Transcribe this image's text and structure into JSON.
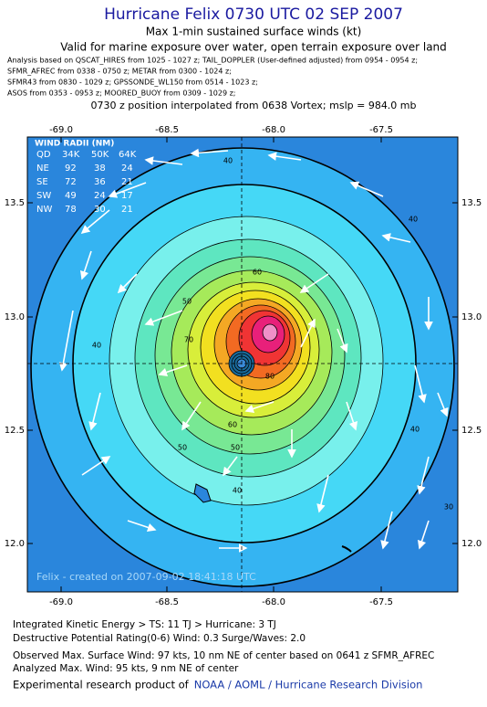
{
  "header": {
    "title": "Hurricane Felix 0730 UTC 02 SEP 2007",
    "subtitle": "Max 1-min sustained surface winds (kt)",
    "validity": "Valid for marine exposure over water, open terrain exposure over land",
    "analysis": [
      "Analysis based on  QSCAT_HIRES from 1025 - 1027 z;  TAIL_DOPPLER (User-defined adjusted) from 0954 - 0954 z;",
      "SFMR_AFREC from 0338 - 0750 z;  METAR from 0300 - 1024 z;",
      "SFMR43 from 0830 - 1029 z;  GPSSONDE_WL150 from 0514 - 1023 z;",
      "ASOS from 0353 - 0953 z;  MOORED_BUOY from 0309 - 1029 z;"
    ],
    "position": "0730 z position interpolated from 0638 Vortex; mslp = 984.0 mb"
  },
  "map": {
    "xticks": [
      "-69.0",
      "-68.5",
      "-68.0",
      "-67.5"
    ],
    "yticks": [
      "13.5",
      "13.0",
      "12.5",
      "12.0"
    ],
    "contour_labels": [
      "40",
      "40",
      "50",
      "40",
      "60",
      "50",
      "70",
      "80",
      "60",
      "50",
      "40",
      "40",
      "30"
    ],
    "watermark": "Felix - created on 2007-09-02 18:41:18 UTC",
    "wind_radii": {
      "title": "WIND RADII (NM)",
      "header": [
        "QD",
        "34K",
        "50K",
        "64K"
      ],
      "rows": [
        [
          "NE",
          "92",
          "38",
          "24"
        ],
        [
          "SE",
          "72",
          "36",
          "21"
        ],
        [
          "SW",
          "49",
          "24",
          "17"
        ],
        [
          "NW",
          "78",
          "30",
          "21"
        ]
      ]
    }
  },
  "footer": {
    "lines": [
      "Integrated Kinetic Energy > TS: 11 TJ  > Hurricane: 3 TJ",
      "Destructive Potential Rating(0-6)  Wind: 0.3 Surge/Waves: 2.0",
      "Observed Max. Surface Wind: 97 kts, 10 nm NE of center based on 0641 z SFMR_AFREC",
      "Analyzed Max. Wind: 95 kts, 9 nm NE of center"
    ],
    "credit": "Experimental research product of",
    "org": "NOAA / AOML / Hurricane Research Division"
  }
}
